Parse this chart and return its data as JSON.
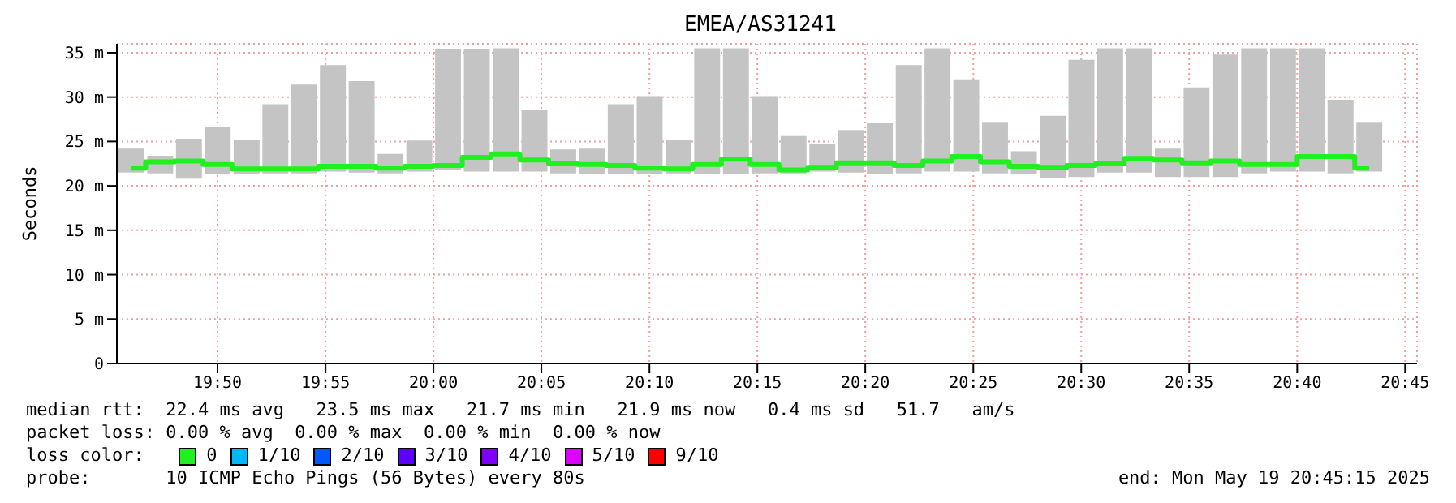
{
  "chart_data": {
    "type": "bar",
    "title": "EMEA/AS31241",
    "ylabel": "Seconds",
    "x": [
      19.7667,
      19.7889,
      19.8111,
      19.8333,
      19.8556,
      19.8778,
      19.9,
      19.9222,
      19.9444,
      19.9667,
      19.9889,
      20.0111,
      20.0333,
      20.0556,
      20.0778,
      20.1,
      20.1222,
      20.1444,
      20.1667,
      20.1889,
      20.2111,
      20.2333,
      20.2556,
      20.2778,
      20.3,
      20.3222,
      20.3444,
      20.3667,
      20.3889,
      20.4111,
      20.4333,
      20.4556,
      20.4778,
      20.5,
      20.5222,
      20.5444,
      20.5667,
      20.5889,
      20.6111,
      20.6333,
      20.6556,
      20.6778,
      20.7,
      20.7222
    ],
    "xlim": [
      19.7556,
      20.7592
    ],
    "xticks": [
      {
        "value": 19.8333,
        "label": "19:50"
      },
      {
        "value": 19.9167,
        "label": "19:55"
      },
      {
        "value": 20,
        "label": "20:00"
      },
      {
        "value": 20.0833,
        "label": "20:05"
      },
      {
        "value": 20.1667,
        "label": "20:10"
      },
      {
        "value": 20.25,
        "label": "20:15"
      },
      {
        "value": 20.3333,
        "label": "20:20"
      },
      {
        "value": 20.4167,
        "label": "20:25"
      },
      {
        "value": 20.5,
        "label": "20:30"
      },
      {
        "value": 20.5833,
        "label": "20:35"
      },
      {
        "value": 20.6667,
        "label": "20:40"
      },
      {
        "value": 20.75,
        "label": "20:45"
      }
    ],
    "ylim": [
      0,
      36
    ],
    "yticks": [
      0,
      {
        "value": 5,
        "label": "5 m"
      },
      {
        "value": 10,
        "label": "10 m"
      },
      {
        "value": 15,
        "label": "15 m"
      },
      {
        "value": 20,
        "label": "20 m"
      },
      {
        "value": 25,
        "label": "25 m"
      },
      {
        "value": 30,
        "label": "30 m"
      },
      {
        "value": 35,
        "label": "35 m"
      }
    ],
    "grid": true,
    "legend": "bottom",
    "legend_title": "loss color:",
    "series": [
      {
        "color": "#c4c4c4",
        "base": [
          21.5,
          21.4,
          20.8,
          21.3,
          21.3,
          21.4,
          21.4,
          21.6,
          21.5,
          21.4,
          21.6,
          21.8,
          21.6,
          21.6,
          21.6,
          21.4,
          21.3,
          21.3,
          21.3,
          21.4,
          21.3,
          21.3,
          21.4,
          21.4,
          21.6,
          21.5,
          21.3,
          21.4,
          21.6,
          21.6,
          21.4,
          21.3,
          20.9,
          21.0,
          21.5,
          21.5,
          21.0,
          21.0,
          21.0,
          21.4,
          21.6,
          21.6,
          21.4,
          21.6
        ],
        "values": [
          2.7,
          2.0,
          4.5,
          5.3,
          3.9,
          7.8,
          10.0,
          12.0,
          10.3,
          2.2,
          3.5,
          13.6,
          13.8,
          13.9,
          7.0,
          2.7,
          2.9,
          7.9,
          8.8,
          3.8,
          14.2,
          14.2,
          8.7,
          4.2,
          3.1,
          4.8,
          5.8,
          12.2,
          13.9,
          10.4,
          5.8,
          2.6,
          7.0,
          13.2,
          14.0,
          14.0,
          3.2,
          10.1,
          13.8,
          14.1,
          13.9,
          13.9,
          8.3,
          5.6
        ]
      },
      {
        "type": "step",
        "name": "0",
        "color": "#20f020",
        "values": [
          22.0,
          22.7,
          22.8,
          22.4,
          21.9,
          21.9,
          21.9,
          22.2,
          22.2,
          22.0,
          22.2,
          22.3,
          23.2,
          23.6,
          22.9,
          22.5,
          22.4,
          22.3,
          22.0,
          21.9,
          22.4,
          23.0,
          22.4,
          21.8,
          22.1,
          22.6,
          22.6,
          22.3,
          22.8,
          23.3,
          22.7,
          22.2,
          22.1,
          22.3,
          22.5,
          23.1,
          22.9,
          22.6,
          22.8,
          22.4,
          22.4,
          23.3,
          23.3,
          22.0
        ]
      },
      {
        "type": "step",
        "name": "1/10",
        "color": "#00b8ff",
        "values": [
          null,
          null,
          null,
          null,
          null,
          null,
          null,
          null,
          null,
          null,
          null,
          null,
          null,
          null,
          null,
          null,
          null,
          null,
          null,
          null,
          null,
          null,
          null,
          null,
          null,
          null,
          null,
          null,
          null,
          null,
          null,
          null,
          null,
          null,
          null,
          null,
          null,
          null,
          null,
          null,
          null,
          null,
          null,
          null
        ]
      },
      {
        "type": "step",
        "name": "2/10",
        "color": "#0059ff",
        "values": [
          null,
          null,
          null,
          null,
          null,
          null,
          null,
          null,
          null,
          null,
          null,
          null,
          null,
          null,
          null,
          null,
          null,
          null,
          null,
          null,
          null,
          null,
          null,
          null,
          null,
          null,
          null,
          null,
          null,
          null,
          null,
          null,
          null,
          null,
          null,
          null,
          null,
          null,
          null,
          null,
          null,
          null,
          null,
          null
        ]
      },
      {
        "type": "step",
        "name": "3/10",
        "color": "#5e00ff",
        "values": [
          null,
          null,
          null,
          null,
          null,
          null,
          null,
          null,
          null,
          null,
          null,
          null,
          null,
          null,
          null,
          null,
          null,
          null,
          null,
          null,
          null,
          null,
          null,
          null,
          null,
          null,
          null,
          null,
          null,
          null,
          null,
          null,
          null,
          null,
          null,
          null,
          null,
          null,
          null,
          null,
          null,
          null,
          null,
          null
        ]
      },
      {
        "type": "step",
        "name": "4/10",
        "color": "#7e00ff",
        "values": [
          null,
          null,
          null,
          null,
          null,
          null,
          null,
          null,
          null,
          null,
          null,
          null,
          null,
          null,
          null,
          null,
          null,
          null,
          null,
          null,
          null,
          null,
          null,
          null,
          null,
          null,
          null,
          null,
          null,
          null,
          null,
          null,
          null,
          null,
          null,
          null,
          null,
          null,
          null,
          null,
          null,
          null,
          null,
          null
        ]
      },
      {
        "type": "step",
        "name": "5/10",
        "color": "#dd00ff",
        "values": [
          null,
          null,
          null,
          null,
          null,
          null,
          null,
          null,
          null,
          null,
          null,
          null,
          null,
          null,
          null,
          null,
          null,
          null,
          null,
          null,
          null,
          null,
          null,
          null,
          null,
          null,
          null,
          null,
          null,
          null,
          null,
          null,
          null,
          null,
          null,
          null,
          null,
          null,
          null,
          null,
          null,
          null,
          null,
          null
        ]
      },
      {
        "type": "step",
        "name": "9/10",
        "color": "#ff0000",
        "values": [
          null,
          null,
          null,
          null,
          null,
          null,
          null,
          null,
          null,
          null,
          null,
          null,
          null,
          null,
          null,
          null,
          null,
          null,
          null,
          null,
          null,
          null,
          null,
          null,
          null,
          null,
          null,
          null,
          null,
          null,
          null,
          null,
          null,
          null,
          null,
          null,
          null,
          null,
          null,
          null,
          null,
          null,
          null,
          null
        ]
      }
    ],
    "annotations": [
      "median rtt:  22.4 ms avg   23.5 ms max   21.7 ms min   21.9 ms now   0.4 ms sd   51.7   am/s",
      "packet loss: 0.00 % avg  0.00 % max  0.00 % min  0.00 % now",
      "probe:       10 ICMP Echo Pings (56 Bytes) every 80s",
      "end: Mon May 19 20:45:15 2025"
    ]
  }
}
